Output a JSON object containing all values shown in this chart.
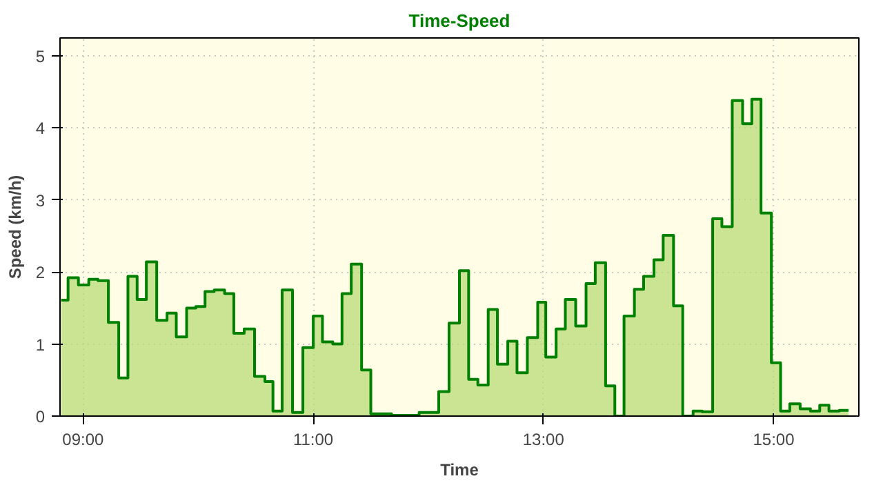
{
  "chart_data": {
    "type": "step",
    "title": "Time-Speed",
    "xlabel": "Time",
    "ylabel": "Speed (km/h)",
    "x": [
      8.81,
      8.87,
      8.96,
      9.05,
      9.13,
      9.22,
      9.31,
      9.39,
      9.47,
      9.55,
      9.64,
      9.73,
      9.81,
      9.9,
      9.98,
      10.06,
      10.14,
      10.23,
      10.31,
      10.4,
      10.49,
      10.58,
      10.65,
      10.73,
      10.82,
      10.91,
      11.0,
      11.08,
      11.17,
      11.25,
      11.33,
      11.42,
      11.5,
      11.68,
      11.92,
      12.09,
      12.18,
      12.27,
      12.35,
      12.43,
      12.52,
      12.6,
      12.69,
      12.77,
      12.86,
      12.95,
      13.02,
      13.11,
      13.19,
      13.28,
      13.37,
      13.45,
      13.54,
      13.62,
      13.7,
      13.79,
      13.87,
      13.96,
      14.04,
      14.13,
      14.21,
      14.3,
      14.38,
      14.47,
      14.55,
      14.64,
      14.73,
      14.81,
      14.89,
      14.98,
      15.06,
      15.14,
      15.23,
      15.32,
      15.4,
      15.48,
      15.57,
      15.65
    ],
    "series": [
      {
        "color": "#008000",
        "values": [
          1.61,
          1.92,
          1.82,
          1.9,
          1.88,
          1.3,
          0.53,
          1.94,
          1.62,
          2.14,
          1.33,
          1.43,
          1.1,
          1.5,
          1.52,
          1.73,
          1.75,
          1.7,
          1.15,
          1.21,
          0.55,
          0.48,
          0.07,
          1.75,
          0.05,
          0.95,
          1.39,
          1.03,
          1.0,
          1.7,
          2.11,
          0.64,
          0.03,
          0.01,
          0.05,
          0.34,
          1.29,
          2.02,
          0.51,
          0.43,
          1.48,
          0.72,
          1.04,
          0.6,
          1.09,
          1.58,
          0.82,
          1.21,
          1.62,
          1.25,
          1.84,
          2.13,
          0.42,
          0.0,
          1.39,
          1.76,
          1.94,
          2.17,
          2.51,
          1.53,
          0.0,
          0.07,
          0.06,
          2.74,
          2.63,
          4.38,
          4.06,
          4.4,
          2.82,
          0.74,
          0.07,
          0.17,
          0.1,
          0.07,
          0.15,
          0.07,
          0.08,
          0.08
        ]
      }
    ],
    "xlim": [
      8.8,
      15.74
    ],
    "ylim": [
      0,
      5.25
    ],
    "xticks": [
      {
        "value": 9,
        "label": "09:00"
      },
      {
        "value": 11,
        "label": "11:00"
      },
      {
        "value": 13,
        "label": "13:00"
      },
      {
        "value": 15,
        "label": "15:00"
      }
    ],
    "yticks": [
      0,
      1,
      2,
      3,
      4,
      5
    ],
    "grid": true
  }
}
